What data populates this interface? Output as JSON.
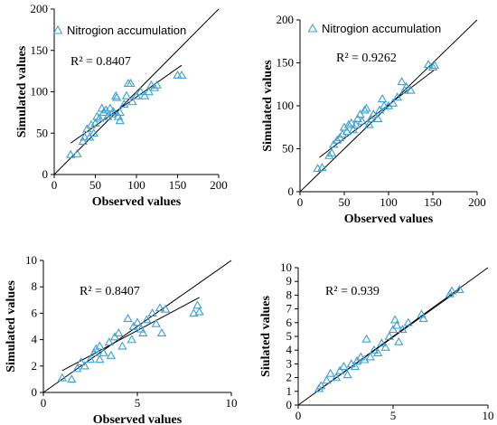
{
  "chart_data": [
    {
      "type": "scatter",
      "xlabel": "Observed values",
      "ylabel": "Simulated values",
      "xlim": [
        0,
        200
      ],
      "ylim": [
        0,
        200
      ],
      "xticks": [
        "0",
        "50",
        "100",
        "150",
        "200"
      ],
      "yticks": [
        "0",
        "50",
        "100",
        "150",
        "200"
      ],
      "legend": "Nitrogion accumulation",
      "legend_position": "top-left",
      "r2_text": "R² = 0.8407",
      "marker_color": "#3aa0d8",
      "series": [
        {
          "name": "Nitrogion accumulation",
          "points": [
            [
              20,
              24
            ],
            [
              28,
              25
            ],
            [
              35,
              40
            ],
            [
              37,
              45
            ],
            [
              40,
              55
            ],
            [
              43,
              45
            ],
            [
              45,
              60
            ],
            [
              48,
              50
            ],
            [
              50,
              62
            ],
            [
              52,
              70
            ],
            [
              55,
              68
            ],
            [
              58,
              80
            ],
            [
              60,
              75
            ],
            [
              63,
              78
            ],
            [
              65,
              70
            ],
            [
              68,
              80
            ],
            [
              70,
              73
            ],
            [
              72,
              76
            ],
            [
              75,
              95
            ],
            [
              76,
              93
            ],
            [
              78,
              70
            ],
            [
              80,
              65
            ],
            [
              80,
              75
            ],
            [
              85,
              85
            ],
            [
              88,
              95
            ],
            [
              90,
              110
            ],
            [
              93,
              110
            ],
            [
              95,
              88
            ],
            [
              100,
              95
            ],
            [
              105,
              100
            ],
            [
              110,
              95
            ],
            [
              115,
              100
            ],
            [
              118,
              108
            ],
            [
              122,
              105
            ],
            [
              125,
              108
            ],
            [
              150,
              120
            ],
            [
              155,
              120
            ]
          ]
        }
      ],
      "fit_line": [
        [
          20,
          38
        ],
        [
          155,
          132
        ]
      ],
      "one_to_one": [
        [
          0,
          0
        ],
        [
          200,
          200
        ]
      ]
    },
    {
      "type": "scatter",
      "xlabel": "Observed values",
      "ylabel": "Simulated values",
      "xlim": [
        0,
        200
      ],
      "ylim": [
        0,
        200
      ],
      "xticks": [
        "0",
        "50",
        "100",
        "150",
        "200"
      ],
      "yticks": [
        "0",
        "50",
        "100",
        "150",
        "200"
      ],
      "legend": "Nitrogion accumulation",
      "legend_position": "top-left",
      "r2_text": "R² = 0.9262",
      "marker_color": "#3aa0d8",
      "series": [
        {
          "name": "Nitrogion accumulation",
          "points": [
            [
              20,
              27
            ],
            [
              25,
              28
            ],
            [
              33,
              42
            ],
            [
              36,
              45
            ],
            [
              38,
              55
            ],
            [
              42,
              60
            ],
            [
              45,
              63
            ],
            [
              48,
              67
            ],
            [
              50,
              75
            ],
            [
              53,
              70
            ],
            [
              55,
              78
            ],
            [
              58,
              80
            ],
            [
              60,
              72
            ],
            [
              63,
              78
            ],
            [
              65,
              85
            ],
            [
              68,
              90
            ],
            [
              70,
              82
            ],
            [
              73,
              95
            ],
            [
              75,
              97
            ],
            [
              78,
              78
            ],
            [
              80,
              85
            ],
            [
              83,
              90
            ],
            [
              88,
              85
            ],
            [
              90,
              95
            ],
            [
              93,
              108
            ],
            [
              95,
              100
            ],
            [
              100,
              100
            ],
            [
              105,
              103
            ],
            [
              110,
              110
            ],
            [
              115,
              128
            ],
            [
              118,
              118
            ],
            [
              120,
              122
            ],
            [
              125,
              118
            ],
            [
              145,
              148
            ],
            [
              150,
              145
            ],
            [
              152,
              147
            ]
          ]
        }
      ],
      "fit_line": [
        [
          22,
          40
        ],
        [
          152,
          142
        ]
      ],
      "one_to_one": [
        [
          0,
          0
        ],
        [
          200,
          200
        ]
      ]
    },
    {
      "type": "scatter",
      "xlabel": "Observed values",
      "ylabel": "Simulated values",
      "xlim": [
        0,
        10
      ],
      "ylim": [
        0,
        10
      ],
      "xticks": [
        "0",
        "5",
        "10"
      ],
      "yticks": [
        "0",
        "2",
        "4",
        "6",
        "8",
        "10"
      ],
      "r2_text": "R² = 0.8407",
      "marker_color": "#3aa0d8",
      "series": [
        {
          "name": "",
          "points": [
            [
              1.0,
              1.1
            ],
            [
              1.5,
              1.0
            ],
            [
              1.8,
              1.8
            ],
            [
              2.0,
              2.3
            ],
            [
              2.2,
              2.0
            ],
            [
              2.5,
              2.5
            ],
            [
              2.7,
              3.0
            ],
            [
              2.8,
              3.3
            ],
            [
              3.0,
              3.5
            ],
            [
              3.0,
              2.5
            ],
            [
              3.2,
              3.0
            ],
            [
              3.5,
              3.8
            ],
            [
              3.6,
              2.8
            ],
            [
              3.8,
              4.2
            ],
            [
              4.0,
              4.5
            ],
            [
              4.2,
              3.5
            ],
            [
              4.5,
              5.6
            ],
            [
              4.7,
              4.0
            ],
            [
              4.8,
              5.0
            ],
            [
              5.0,
              5.3
            ],
            [
              5.2,
              4.8
            ],
            [
              5.3,
              4.5
            ],
            [
              5.5,
              5.5
            ],
            [
              5.8,
              6.0
            ],
            [
              6.0,
              5.2
            ],
            [
              6.2,
              6.4
            ],
            [
              6.3,
              4.5
            ],
            [
              6.5,
              6.3
            ],
            [
              8.0,
              6.0
            ],
            [
              8.2,
              6.6
            ],
            [
              8.3,
              6.1
            ]
          ]
        }
      ],
      "fit_line": [
        [
          1.0,
          1.65
        ],
        [
          8.3,
          7.2
        ]
      ],
      "one_to_one": [
        [
          0,
          0
        ],
        [
          10,
          10
        ]
      ]
    },
    {
      "type": "scatter",
      "xlabel": "Observed values",
      "ylabel": "Siulated values",
      "xlim": [
        0,
        10
      ],
      "ylim": [
        0,
        10
      ],
      "xticks": [
        "0",
        "5",
        "10"
      ],
      "yticks": [
        "0",
        "1",
        "2",
        "3",
        "4",
        "5",
        "6",
        "7",
        "8",
        "9",
        "10"
      ],
      "r2_text": "R² = 0.939",
      "marker_color": "#3aa0d8",
      "series": [
        {
          "name": "",
          "points": [
            [
              1.1,
              1.2
            ],
            [
              1.2,
              1.4
            ],
            [
              1.5,
              1.8
            ],
            [
              1.7,
              2.3
            ],
            [
              2.0,
              2.0
            ],
            [
              2.2,
              2.5
            ],
            [
              2.4,
              2.8
            ],
            [
              2.6,
              2.2
            ],
            [
              2.8,
              3.0
            ],
            [
              3.0,
              2.8
            ],
            [
              3.1,
              3.2
            ],
            [
              3.3,
              3.5
            ],
            [
              3.5,
              3.3
            ],
            [
              3.6,
              4.8
            ],
            [
              3.8,
              3.5
            ],
            [
              4.0,
              4.0
            ],
            [
              4.2,
              3.8
            ],
            [
              4.4,
              4.5
            ],
            [
              4.6,
              4.2
            ],
            [
              4.8,
              5.0
            ],
            [
              5.0,
              5.5
            ],
            [
              5.1,
              6.2
            ],
            [
              5.2,
              5.8
            ],
            [
              5.3,
              4.6
            ],
            [
              5.5,
              5.5
            ],
            [
              5.8,
              6.0
            ],
            [
              6.5,
              6.6
            ],
            [
              6.6,
              6.3
            ],
            [
              8.0,
              8.1
            ],
            [
              8.1,
              8.3
            ],
            [
              8.5,
              8.4
            ]
          ]
        }
      ],
      "fit_line": [
        [
          1.0,
          1.0
        ],
        [
          8.5,
          8.4
        ]
      ],
      "one_to_one": [
        [
          0,
          0
        ],
        [
          10,
          10
        ]
      ]
    }
  ]
}
